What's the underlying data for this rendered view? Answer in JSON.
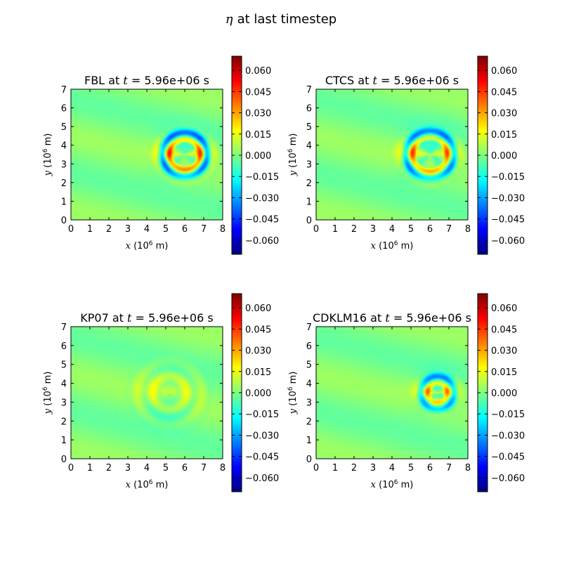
{
  "figure": {
    "title_symbol": "η",
    "title_text": "at last timestep"
  },
  "chart_data": [
    {
      "type": "heatmap",
      "title": "FBL at t = 5.96e+06 s",
      "title_scheme": "FBL",
      "title_var": "t",
      "title_value": "= 5.96e+06 s",
      "xlabel_var": "x",
      "xlabel_unit": "(10",
      "xlabel_exp": "6",
      "xlabel_tail": " m)",
      "ylabel_var": "y",
      "ylabel_unit": "(10",
      "ylabel_exp": "6",
      "ylabel_tail": " m)",
      "xlim": [
        0,
        8
      ],
      "ylim": [
        0,
        7
      ],
      "xticks": [
        "0",
        "1",
        "2",
        "3",
        "4",
        "5",
        "6",
        "7",
        "8"
      ],
      "yticks": [
        "0",
        "1",
        "2",
        "3",
        "4",
        "5",
        "6",
        "7"
      ],
      "colorbar_range": [
        -0.07,
        0.07
      ],
      "colorbar_ticks": [
        "0.060",
        "0.045",
        "0.030",
        "0.015",
        "0.000",
        "−0.015",
        "−0.030",
        "−0.045",
        "−0.060"
      ],
      "field": {
        "front_x": 7.0,
        "front_amp": 0.045,
        "front_thickness": 0.32,
        "source_x": 6.0,
        "source_y": 3.5,
        "fringe_amp": 0.012,
        "fringe_dispersion": 1.0
      }
    },
    {
      "type": "heatmap",
      "title": "CTCS at t = 5.96e+06 s",
      "title_scheme": "CTCS",
      "title_var": "t",
      "title_value": "= 5.96e+06 s",
      "xlabel_var": "x",
      "xlabel_unit": "(10",
      "xlabel_exp": "6",
      "xlabel_tail": " m)",
      "ylabel_var": "y",
      "ylabel_unit": "(10",
      "ylabel_exp": "6",
      "ylabel_tail": " m)",
      "xlim": [
        0,
        8
      ],
      "ylim": [
        0,
        7
      ],
      "xticks": [
        "0",
        "1",
        "2",
        "3",
        "4",
        "5",
        "6",
        "7",
        "8"
      ],
      "yticks": [
        "0",
        "1",
        "2",
        "3",
        "4",
        "5",
        "6",
        "7"
      ],
      "colorbar_range": [
        -0.07,
        0.07
      ],
      "colorbar_ticks": [
        "0.060",
        "0.045",
        "0.030",
        "0.015",
        "0.000",
        "−0.015",
        "−0.030",
        "−0.045",
        "−0.060"
      ],
      "field": {
        "front_x": 7.1,
        "front_amp": 0.04,
        "front_thickness": 0.3,
        "source_x": 6.0,
        "source_y": 3.5,
        "fringe_amp": 0.014,
        "fringe_dispersion": 1.0
      }
    },
    {
      "type": "heatmap",
      "title": "KP07 at t = 5.96e+06 s",
      "title_scheme": "KP07",
      "title_var": "t",
      "title_value": "= 5.96e+06 s",
      "xlabel_var": "x",
      "xlabel_unit": "(10",
      "xlabel_exp": "6",
      "xlabel_tail": " m)",
      "ylabel_var": "y",
      "ylabel_unit": "(10",
      "ylabel_exp": "6",
      "ylabel_tail": " m)",
      "xlim": [
        0,
        8
      ],
      "ylim": [
        0,
        7
      ],
      "xticks": [
        "0",
        "1",
        "2",
        "3",
        "4",
        "5",
        "6",
        "7",
        "8"
      ],
      "yticks": [
        "0",
        "1",
        "2",
        "3",
        "4",
        "5",
        "6",
        "7"
      ],
      "colorbar_range": [
        -0.07,
        0.07
      ],
      "colorbar_ticks": [
        "0.060",
        "0.045",
        "0.030",
        "0.015",
        "0.000",
        "−0.015",
        "−0.030",
        "−0.045",
        "−0.060"
      ],
      "field": {
        "front_x": 6.3,
        "front_amp": 0.008,
        "front_thickness": 0.6,
        "source_x": 5.2,
        "source_y": 3.5,
        "fringe_amp": 0.008,
        "fringe_dispersion": 0.4
      }
    },
    {
      "type": "heatmap",
      "title": "CDKLM16 at t = 5.96e+06 s",
      "title_scheme": "CDKLM16",
      "title_var": "t",
      "title_value": "= 5.96e+06 s",
      "xlabel_var": "x",
      "xlabel_unit": "(10",
      "xlabel_exp": "6",
      "xlabel_tail": " m)",
      "ylabel_var": "y",
      "ylabel_unit": "(10",
      "ylabel_exp": "6",
      "ylabel_tail": " m)",
      "xlim": [
        0,
        8
      ],
      "ylim": [
        0,
        7
      ],
      "xticks": [
        "0",
        "1",
        "2",
        "3",
        "4",
        "5",
        "6",
        "7",
        "8"
      ],
      "yticks": [
        "0",
        "1",
        "2",
        "3",
        "4",
        "5",
        "6",
        "7"
      ],
      "colorbar_range": [
        -0.07,
        0.07
      ],
      "colorbar_ticks": [
        "0.060",
        "0.045",
        "0.030",
        "0.015",
        "0.000",
        "−0.015",
        "−0.030",
        "−0.045",
        "−0.060"
      ],
      "field": {
        "front_x": 7.1,
        "front_amp": 0.035,
        "front_thickness": 0.28,
        "source_x": 6.4,
        "source_y": 3.5,
        "fringe_amp": 0.012,
        "fringe_dispersion": 0.9
      }
    }
  ]
}
